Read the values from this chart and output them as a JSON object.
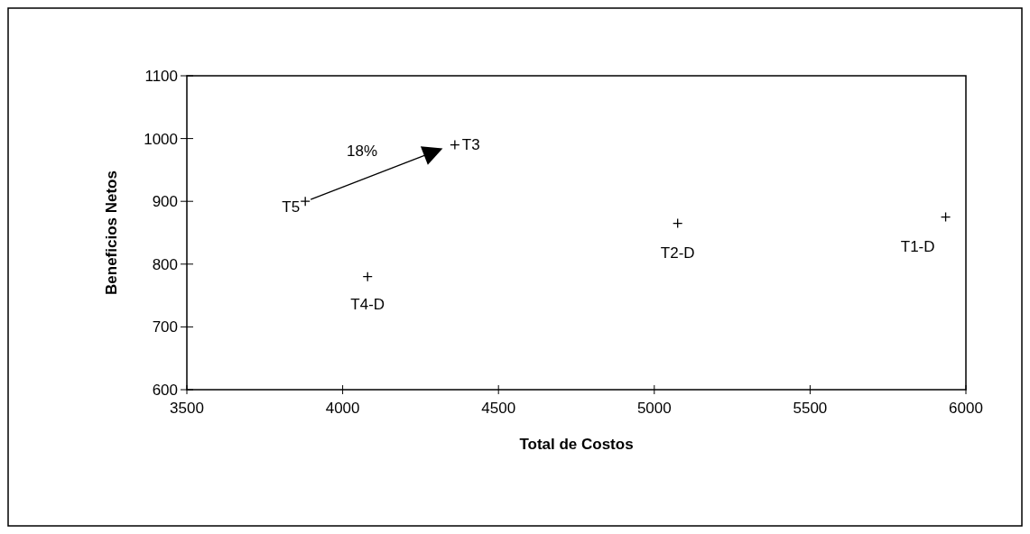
{
  "chart_data": {
    "type": "scatter",
    "xlabel": "Total de Costos",
    "ylabel": "Beneficios Netos",
    "xlim": [
      3500,
      6000
    ],
    "xticks": [
      3500,
      4000,
      4500,
      5000,
      5500,
      6000
    ],
    "ylim": [
      600,
      1100
    ],
    "yticks": [
      600,
      700,
      800,
      900,
      1000,
      1100
    ],
    "grid": false,
    "marker": "cross",
    "annotations": [
      "18%"
    ],
    "series": [
      {
        "name": "T5",
        "color": "#000000",
        "x": [
          3880
        ],
        "values": [
          900
        ]
      },
      {
        "name": "T3",
        "color": "#000000",
        "x": [
          4360
        ],
        "values": [
          990
        ]
      },
      {
        "name": "T4-D",
        "color": "#000000",
        "x": [
          4080
        ],
        "values": [
          780
        ]
      },
      {
        "name": "T2-D",
        "color": "#000000",
        "x": [
          5075
        ],
        "values": [
          865
        ]
      },
      {
        "name": "T1-D",
        "color": "#000000",
        "x": [
          5935
        ],
        "values": [
          875
        ]
      }
    ]
  }
}
